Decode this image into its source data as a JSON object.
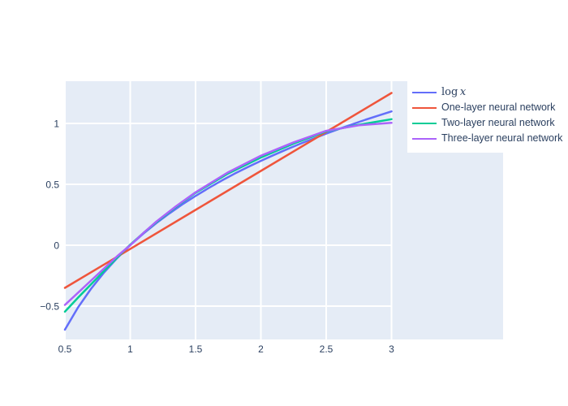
{
  "figure": {
    "background": "#ffffff",
    "plot_background": "#e5ecf6",
    "grid_color": "#ffffff",
    "tick_color": "#2a3f5f"
  },
  "legend": {
    "background": "#ffffff",
    "items": [
      {
        "label": "log x",
        "color": "#636efa",
        "math": true
      },
      {
        "label": "One-layer neural network",
        "color": "#ef553b",
        "math": false
      },
      {
        "label": "Two-layer neural network",
        "color": "#00cc96",
        "math": false
      },
      {
        "label": "Three-layer neural network",
        "color": "#ab63fa",
        "math": false
      }
    ]
  },
  "chart_data": {
    "type": "line",
    "title": "",
    "xlabel": "",
    "ylabel": "",
    "xlim": [
      0.5,
      3.854
    ],
    "ylim": [
      -0.773,
      1.347
    ],
    "grid": true,
    "legend_position": "top-right, white box overlapping plot area",
    "xticks": {
      "values": [
        0.5,
        1,
        1.5,
        2,
        2.5,
        3
      ],
      "labels": [
        "0.5",
        "1",
        "1.5",
        "2",
        "2.5",
        "3"
      ]
    },
    "yticks": {
      "values": [
        -0.5,
        0,
        0.5,
        1
      ],
      "labels": [
        "−0.5",
        "0",
        "0.5",
        "1"
      ]
    },
    "series": [
      {
        "name": "log x",
        "color": "#636efa",
        "x": [
          0.5,
          0.6,
          0.7,
          0.8,
          0.9,
          1.0,
          1.1,
          1.2,
          1.3,
          1.4,
          1.5,
          1.6,
          1.7,
          1.8,
          1.9,
          2.0,
          2.1,
          2.2,
          2.3,
          2.4,
          2.5,
          2.6,
          2.7,
          2.8,
          2.9,
          3.0
        ],
        "y": [
          -0.693,
          -0.511,
          -0.357,
          -0.223,
          -0.105,
          0.0,
          0.095,
          0.182,
          0.262,
          0.336,
          0.405,
          0.47,
          0.531,
          0.588,
          0.642,
          0.693,
          0.742,
          0.788,
          0.833,
          0.875,
          0.916,
          0.956,
          0.993,
          1.03,
          1.065,
          1.099
        ]
      },
      {
        "name": "One-layer neural network",
        "color": "#ef553b",
        "x": [
          0.5,
          1.0,
          1.5,
          2.0,
          2.5,
          3.0
        ],
        "y": [
          -0.35,
          -0.03,
          0.29,
          0.61,
          0.93,
          1.25
        ]
      },
      {
        "name": "Two-layer neural network",
        "color": "#00cc96",
        "x": [
          0.5,
          0.6,
          0.7,
          0.8,
          0.9,
          1.0,
          1.1,
          1.2,
          1.35,
          1.5,
          1.75,
          2.0,
          2.25,
          2.5,
          2.75,
          3.0
        ],
        "y": [
          -0.545,
          -0.43,
          -0.32,
          -0.21,
          -0.1,
          0.005,
          0.1,
          0.19,
          0.315,
          0.43,
          0.59,
          0.72,
          0.835,
          0.935,
          0.99,
          1.035
        ]
      },
      {
        "name": "Three-layer neural network",
        "color": "#ab63fa",
        "x": [
          0.5,
          0.6,
          0.7,
          0.8,
          0.9,
          1.0,
          1.1,
          1.2,
          1.35,
          1.5,
          1.75,
          2.0,
          2.25,
          2.5,
          2.75,
          3.0
        ],
        "y": [
          -0.49,
          -0.39,
          -0.29,
          -0.19,
          -0.09,
          0.0,
          0.1,
          0.195,
          0.32,
          0.435,
          0.6,
          0.735,
          0.845,
          0.94,
          0.985,
          1.005
        ]
      }
    ]
  }
}
